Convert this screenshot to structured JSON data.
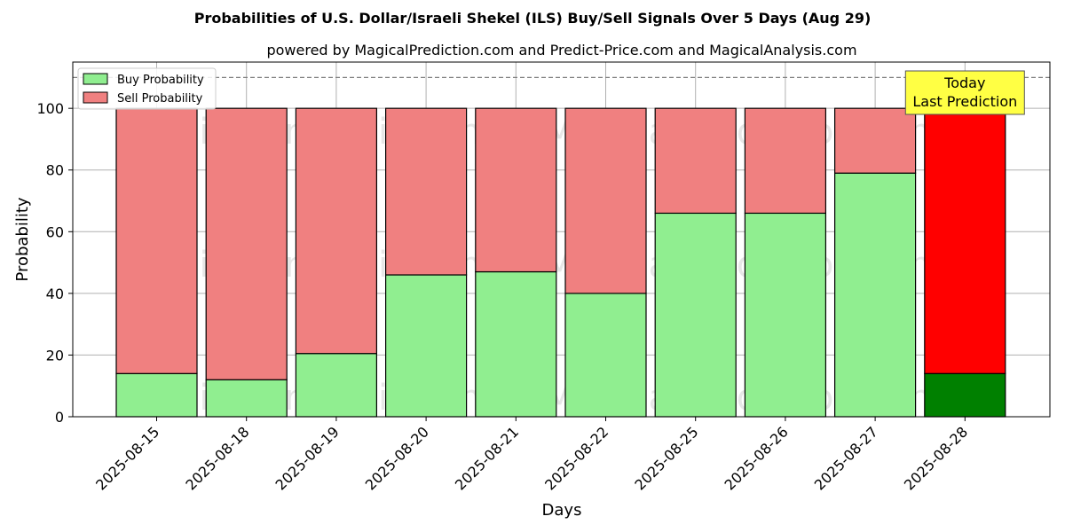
{
  "chart_data": {
    "type": "bar",
    "stacked": true,
    "title": "Probabilities of U.S. Dollar/Israeli Shekel (ILS) Buy/Sell Signals Over 5 Days (Aug 29)",
    "subtitle": "powered by MagicalPrediction.com and Predict-Price.com and MagicalAnalysis.com",
    "xlabel": "Days",
    "ylabel": "Probability",
    "ylim": [
      0,
      115
    ],
    "yticks": [
      0,
      20,
      40,
      60,
      80,
      100
    ],
    "grid": true,
    "categories": [
      "2025-08-15",
      "2025-08-18",
      "2025-08-19",
      "2025-08-20",
      "2025-08-21",
      "2025-08-22",
      "2025-08-25",
      "2025-08-26",
      "2025-08-27",
      "2025-08-28"
    ],
    "series": [
      {
        "name": "Buy Probability",
        "color": "#90ee90",
        "highlight_color": "#008000",
        "values": [
          14,
          12,
          20.5,
          46,
          47,
          40,
          66,
          66,
          79,
          14
        ]
      },
      {
        "name": "Sell Probability",
        "color": "#f08080",
        "highlight_color": "#ff0000",
        "values": [
          86,
          88,
          79.5,
          54,
          53,
          60,
          34,
          34,
          21,
          86
        ]
      }
    ],
    "highlight_index": 9,
    "reference_line": {
      "value": 110,
      "style": "dashed",
      "color": "#808080"
    },
    "legend": {
      "placement": "top-left",
      "entries": [
        "Buy Probability",
        "Sell Probability"
      ]
    },
    "annotation": {
      "lines": [
        "Today",
        "Last Prediction"
      ],
      "target_index": 9,
      "background": "#ffff44"
    },
    "watermarks": [
      "MagicalAnalysis.com",
      "MagicalPrediction.com"
    ]
  }
}
